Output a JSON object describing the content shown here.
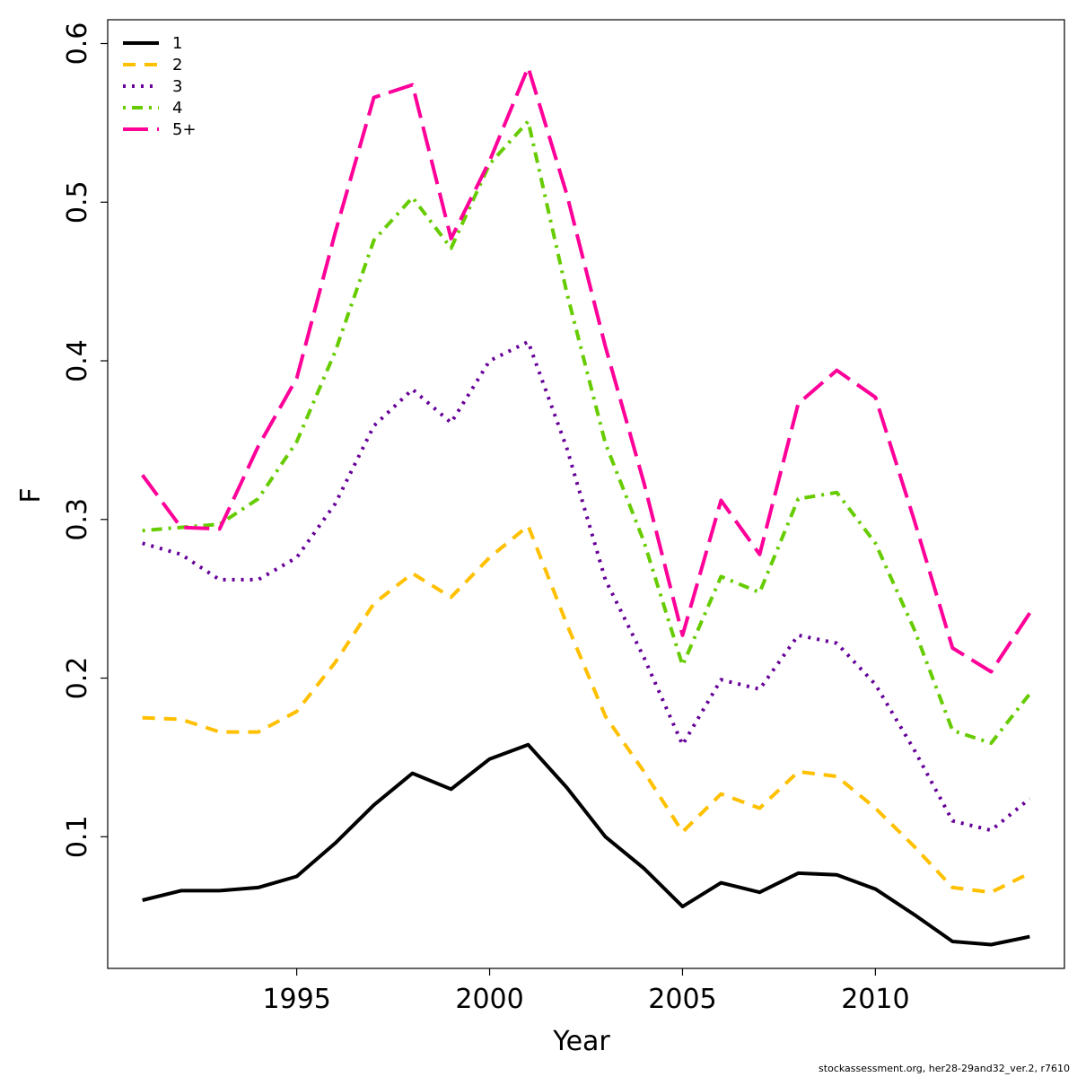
{
  "chart_data": {
    "type": "line",
    "title": "",
    "xlabel": "Year",
    "ylabel": "F",
    "xlim": [
      1990.1,
      2014.9
    ],
    "ylim": [
      0.017,
      0.615
    ],
    "xticks": [
      1995,
      2000,
      2005,
      2010
    ],
    "yticks": [
      0.1,
      0.2,
      0.3,
      0.4,
      0.5,
      0.6
    ],
    "x": [
      1991,
      1992,
      1993,
      1994,
      1995,
      1996,
      1997,
      1998,
      1999,
      2000,
      2001,
      2002,
      2003,
      2004,
      2005,
      2006,
      2007,
      2008,
      2009,
      2010,
      2011,
      2012,
      2013,
      2014
    ],
    "series": [
      {
        "name": "1",
        "color": "#000000",
        "dash": "solid",
        "values": [
          0.06,
          0.066,
          0.066,
          0.068,
          0.075,
          0.096,
          0.12,
          0.14,
          0.13,
          0.149,
          0.158,
          0.131,
          0.1,
          0.08,
          0.056,
          0.071,
          0.065,
          0.077,
          0.076,
          0.067,
          0.051,
          0.034,
          0.032,
          0.037
        ]
      },
      {
        "name": "2",
        "color": "#FFC000",
        "dash": "dashed",
        "values": [
          0.175,
          0.174,
          0.166,
          0.166,
          0.179,
          0.21,
          0.247,
          0.266,
          0.251,
          0.276,
          0.296,
          0.234,
          0.176,
          0.141,
          0.103,
          0.127,
          0.118,
          0.141,
          0.138,
          0.118,
          0.094,
          0.068,
          0.065,
          0.077
        ]
      },
      {
        "name": "3",
        "color": "#660099",
        "dash": "dotted",
        "values": [
          0.285,
          0.278,
          0.262,
          0.262,
          0.276,
          0.31,
          0.359,
          0.382,
          0.361,
          0.4,
          0.412,
          0.345,
          0.262,
          0.213,
          0.158,
          0.199,
          0.193,
          0.227,
          0.222,
          0.196,
          0.155,
          0.11,
          0.104,
          0.124
        ]
      },
      {
        "name": "4",
        "color": "#66CC00",
        "dash": "dotdash",
        "values": [
          0.293,
          0.295,
          0.297,
          0.313,
          0.349,
          0.406,
          0.476,
          0.503,
          0.471,
          0.524,
          0.551,
          0.443,
          0.348,
          0.286,
          0.208,
          0.264,
          0.254,
          0.313,
          0.317,
          0.285,
          0.231,
          0.167,
          0.159,
          0.19
        ]
      },
      {
        "name": "5+",
        "color": "#FF0099",
        "dash": "longdash",
        "values": [
          0.328,
          0.295,
          0.294,
          0.346,
          0.389,
          0.481,
          0.566,
          0.574,
          0.477,
          0.526,
          0.585,
          0.505,
          0.409,
          0.323,
          0.227,
          0.312,
          0.278,
          0.373,
          0.394,
          0.377,
          0.3,
          0.219,
          0.204,
          0.241
        ]
      }
    ],
    "legend": {
      "position": "top-left",
      "entries": [
        "1",
        "2",
        "3",
        "4",
        "5+"
      ]
    },
    "grid": false
  },
  "footer": "stockassessment.org, her28-29and32_ver.2, r7610"
}
